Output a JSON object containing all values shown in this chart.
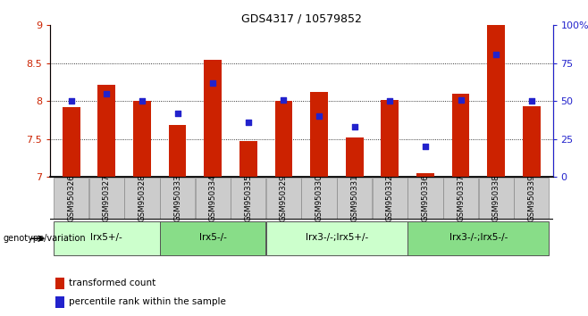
{
  "title": "GDS4317 / 10579852",
  "samples": [
    "GSM950326",
    "GSM950327",
    "GSM950328",
    "GSM950333",
    "GSM950334",
    "GSM950335",
    "GSM950329",
    "GSM950330",
    "GSM950331",
    "GSM950332",
    "GSM950336",
    "GSM950337",
    "GSM950338",
    "GSM950339"
  ],
  "red_values": [
    7.92,
    8.22,
    8.0,
    7.68,
    8.55,
    7.47,
    8.0,
    8.12,
    7.52,
    8.02,
    7.05,
    8.1,
    9.0,
    7.93
  ],
  "blue_values": [
    50,
    55,
    50,
    42,
    62,
    36,
    51,
    40,
    33,
    50,
    20,
    51,
    81,
    50
  ],
  "ylim_left": [
    7.0,
    9.0
  ],
  "ylim_right": [
    0,
    100
  ],
  "yticks_left": [
    7.0,
    7.5,
    8.0,
    8.5,
    9.0
  ],
  "yticks_right": [
    0,
    25,
    50,
    75,
    100
  ],
  "ytick_labels_right": [
    "0",
    "25",
    "50",
    "75",
    "100%"
  ],
  "grid_lines": [
    7.5,
    8.0,
    8.5
  ],
  "bar_color": "#cc2200",
  "dot_color": "#2222cc",
  "bar_width": 0.5,
  "groups": [
    {
      "label": "lrx5+/-",
      "start": 0,
      "end": 3,
      "color": "#ccffcc"
    },
    {
      "label": "lrx5-/-",
      "start": 3,
      "end": 6,
      "color": "#88dd88"
    },
    {
      "label": "lrx3-/-;lrx5+/-",
      "start": 6,
      "end": 10,
      "color": "#ccffcc"
    },
    {
      "label": "lrx3-/-;lrx5-/-",
      "start": 10,
      "end": 14,
      "color": "#88dd88"
    }
  ],
  "legend_red": "transformed count",
  "legend_blue": "percentile rank within the sample",
  "left_tick_color": "#cc2200",
  "right_tick_color": "#2222cc",
  "genotype_label": "genotype/variation",
  "background_xticklabels": "#cccccc"
}
